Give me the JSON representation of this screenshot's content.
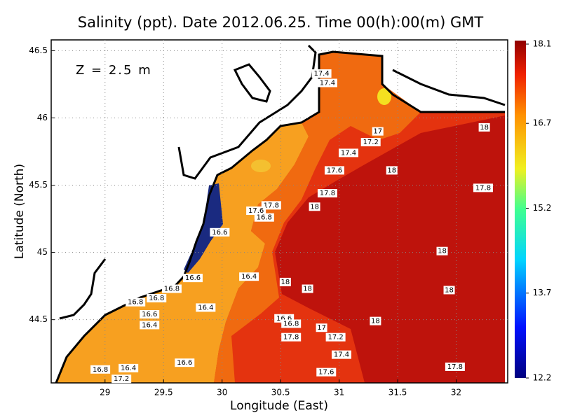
{
  "chart_data": {
    "type": "contour",
    "title": "Salinity (ppt). Date 2012.06.25. Time 00(h):00(m) GMT",
    "annotation": "Z = 2.5 m",
    "x_label": "Longitude (East)",
    "y_label": "Latitude (North)",
    "xlim": [
      28.54,
      32.44
    ],
    "ylim": [
      44.03,
      46.58
    ],
    "xticks": [
      29,
      29.5,
      30,
      30.5,
      31,
      31.5,
      32
    ],
    "yticks": [
      44.5,
      45,
      45.5,
      46,
      46.5
    ],
    "grid": true,
    "colorbar": {
      "lim": [
        12.2,
        18.1
      ],
      "ticks": [
        12.2,
        13.7,
        15.2,
        16.7,
        18.1
      ]
    },
    "contour_labels": [
      {
        "value": 17.4,
        "lon": 30.85,
        "lat": 46.33
      },
      {
        "value": 17.4,
        "lon": 30.9,
        "lat": 46.26
      },
      {
        "value": 17,
        "lon": 31.33,
        "lat": 45.9
      },
      {
        "value": 17.2,
        "lon": 31.27,
        "lat": 45.82
      },
      {
        "value": 17.4,
        "lon": 31.08,
        "lat": 45.74
      },
      {
        "value": 17.6,
        "lon": 30.96,
        "lat": 45.61
      },
      {
        "value": 18,
        "lon": 31.45,
        "lat": 45.61
      },
      {
        "value": 18,
        "lon": 32.24,
        "lat": 45.93
      },
      {
        "value": 17.8,
        "lon": 30.9,
        "lat": 45.44
      },
      {
        "value": 17.8,
        "lon": 32.23,
        "lat": 45.48
      },
      {
        "value": 18,
        "lon": 30.79,
        "lat": 45.34
      },
      {
        "value": 17.8,
        "lon": 30.42,
        "lat": 45.35
      },
      {
        "value": 17.6,
        "lon": 30.29,
        "lat": 45.31
      },
      {
        "value": 16.8,
        "lon": 30.36,
        "lat": 45.26
      },
      {
        "value": 16.6,
        "lon": 29.98,
        "lat": 45.15
      },
      {
        "value": 18,
        "lon": 31.88,
        "lat": 45.01
      },
      {
        "value": 16.4,
        "lon": 30.23,
        "lat": 44.82
      },
      {
        "value": 18,
        "lon": 30.54,
        "lat": 44.78
      },
      {
        "value": 18,
        "lon": 30.73,
        "lat": 44.73
      },
      {
        "value": 18,
        "lon": 31.94,
        "lat": 44.72
      },
      {
        "value": 16.6,
        "lon": 29.75,
        "lat": 44.81
      },
      {
        "value": 16.8,
        "lon": 29.57,
        "lat": 44.73
      },
      {
        "value": 16.8,
        "lon": 29.44,
        "lat": 44.66
      },
      {
        "value": 16.8,
        "lon": 29.26,
        "lat": 44.63
      },
      {
        "value": 16.4,
        "lon": 29.86,
        "lat": 44.59
      },
      {
        "value": 16.6,
        "lon": 29.38,
        "lat": 44.54
      },
      {
        "value": 16.4,
        "lon": 29.38,
        "lat": 44.46
      },
      {
        "value": 16.6,
        "lon": 30.53,
        "lat": 44.51
      },
      {
        "value": 16.8,
        "lon": 30.59,
        "lat": 44.47
      },
      {
        "value": 17,
        "lon": 30.85,
        "lat": 44.44
      },
      {
        "value": 18,
        "lon": 31.31,
        "lat": 44.49
      },
      {
        "value": 17.8,
        "lon": 30.59,
        "lat": 44.37
      },
      {
        "value": 17.2,
        "lon": 30.97,
        "lat": 44.37
      },
      {
        "value": 17.4,
        "lon": 31.02,
        "lat": 44.24
      },
      {
        "value": 16.6,
        "lon": 29.68,
        "lat": 44.18
      },
      {
        "value": 16.8,
        "lon": 28.96,
        "lat": 44.13
      },
      {
        "value": 16.4,
        "lon": 29.2,
        "lat": 44.14
      },
      {
        "value": 17.2,
        "lon": 29.14,
        "lat": 44.06
      },
      {
        "value": 17.6,
        "lon": 30.89,
        "lat": 44.11
      },
      {
        "value": 17.8,
        "lon": 31.99,
        "lat": 44.15
      }
    ]
  }
}
